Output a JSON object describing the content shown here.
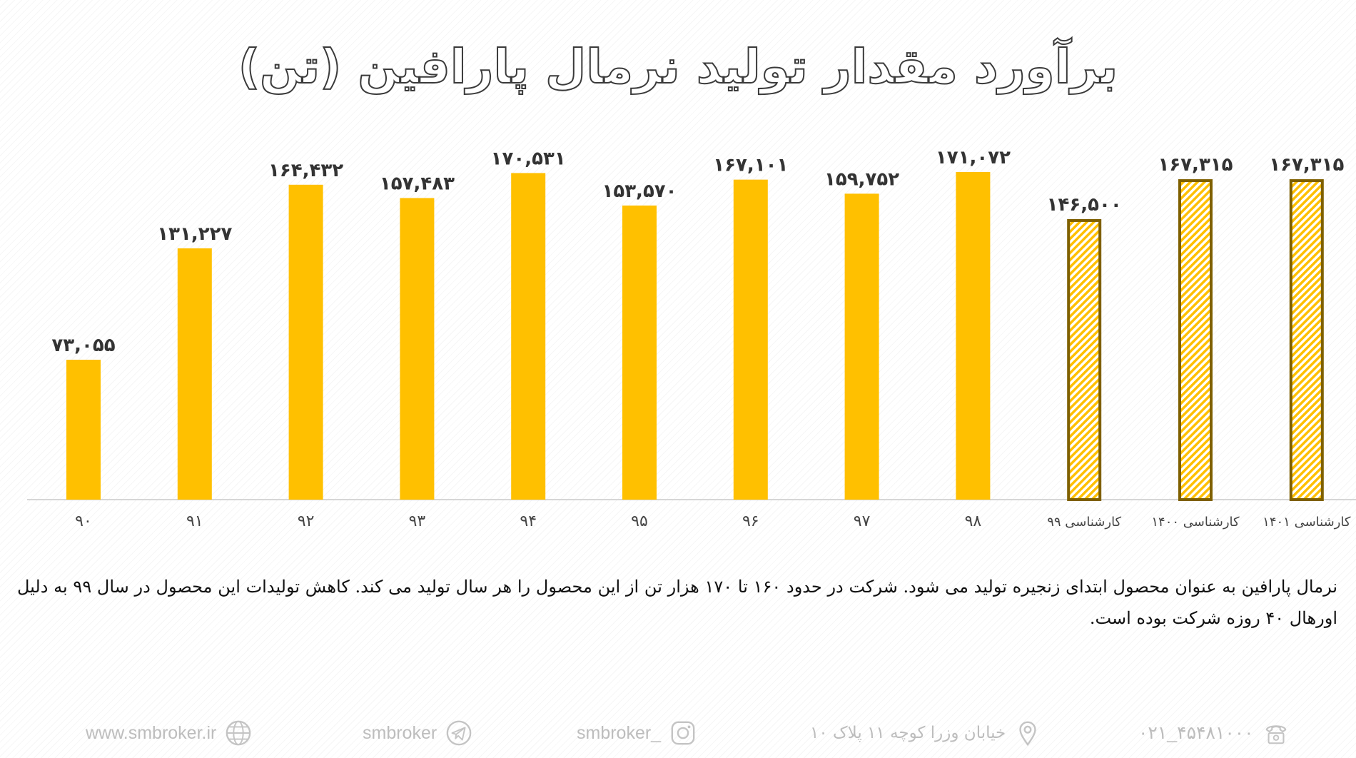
{
  "chart_data": {
    "type": "bar",
    "title": "برآورد مقدار تولید نرمال پارافین (تن)",
    "categories": [
      "۹۰",
      "۹۱",
      "۹۲",
      "۹۳",
      "۹۴",
      "۹۵",
      "۹۶",
      "۹۷",
      "۹۸",
      "کارشناسی ۹۹",
      "کارشناسی ۱۴۰۰",
      "کارشناسی ۱۴۰۱"
    ],
    "values": [
      73055,
      131227,
      164432,
      157483,
      170531,
      153570,
      167101,
      159752,
      171072,
      146500,
      167315,
      167315
    ],
    "value_labels": [
      "۷۳,۰۵۵",
      "۱۳۱,۲۲۷",
      "۱۶۴,۴۳۲",
      "۱۵۷,۴۸۳",
      "۱۷۰,۵۳۱",
      "۱۵۳,۵۷۰",
      "۱۶۷,۱۰۱",
      "۱۵۹,۷۵۲",
      "۱۷۱,۰۷۲",
      "۱۴۶,۵۰۰",
      "۱۶۷,۳۱۵",
      "۱۶۷,۳۱۵"
    ],
    "estimated": [
      false,
      false,
      false,
      false,
      false,
      false,
      false,
      false,
      false,
      true,
      true,
      true
    ],
    "ylim": [
      0,
      180000
    ],
    "grid": false,
    "colors": {
      "bar": "#FFC000",
      "hatch_border": "#7F6000",
      "hatch_fill": "#FFC000"
    }
  },
  "description": "نرمال پارافین به عنوان محصول ابتدای زنجیره تولید می شود. شرکت در حدود ۱۶۰ تا ۱۷۰ هزار تن از این محصول را هر سال تولید می کند. کاهش تولیدات این محصول در سال ۹۹ به دلیل اورهال ۴۰ روزه شرکت بوده است.",
  "footer": {
    "website": "www.smbroker.ir",
    "telegram": "smbroker",
    "instagram": "smbroker_",
    "address": "خیابان وزرا کوچه ۱۱ پلاک ۱۰",
    "phone": "۰۲۱_۴۵۴۸۱۰۰۰",
    "icons": [
      "globe-icon",
      "telegram-icon",
      "instagram-icon",
      "location-pin-icon",
      "telephone-icon"
    ]
  }
}
